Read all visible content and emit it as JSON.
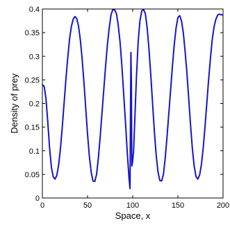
{
  "chart_data": {
    "type": "line",
    "title": "",
    "xlabel": "Space, x",
    "ylabel": "Density of prey",
    "xlim": [
      0,
      200
    ],
    "ylim": [
      0,
      0.4
    ],
    "x_ticks": [
      0,
      50,
      100,
      150,
      200
    ],
    "y_ticks": [
      0,
      0.05,
      0.1,
      0.15,
      0.2,
      0.25,
      0.3,
      0.35,
      0.4
    ],
    "x_tick_labels": [
      "0",
      "50",
      "100",
      "150",
      "200"
    ],
    "y_tick_labels": [
      "0",
      "0.05",
      "0.1",
      "0.15",
      "0.2",
      "0.25",
      "0.3",
      "0.35",
      "0.4"
    ],
    "grid": false,
    "line_color": "#1515c8",
    "series": [
      {
        "x": [
          0,
          2,
          4,
          6,
          8,
          10,
          12,
          14,
          16,
          18,
          20,
          22,
          24,
          26,
          28,
          30,
          32,
          34,
          36,
          38,
          40,
          42,
          44,
          46,
          48,
          50,
          52,
          54,
          56,
          58,
          60,
          62,
          64,
          66,
          68,
          70,
          72,
          74,
          76,
          78,
          80,
          82,
          84,
          86,
          88,
          90,
          92,
          94,
          96,
          97,
          98,
          98.5,
          99,
          99.5,
          100,
          101,
          102,
          104,
          106,
          108,
          110,
          112,
          114,
          116,
          118,
          120,
          122,
          124,
          126,
          128,
          130,
          132,
          134,
          136,
          138,
          140,
          142,
          144,
          146,
          148,
          150,
          152,
          154,
          156,
          158,
          160,
          162,
          164,
          166,
          168,
          170,
          172,
          174,
          176,
          178,
          180,
          182,
          184,
          186,
          188,
          190,
          192,
          194,
          196,
          198,
          200
        ],
        "y": [
          0.24,
          0.236,
          0.21,
          0.16,
          0.105,
          0.065,
          0.045,
          0.04,
          0.048,
          0.07,
          0.105,
          0.15,
          0.2,
          0.25,
          0.295,
          0.335,
          0.362,
          0.378,
          0.384,
          0.38,
          0.364,
          0.335,
          0.295,
          0.245,
          0.19,
          0.135,
          0.088,
          0.055,
          0.036,
          0.035,
          0.05,
          0.085,
          0.13,
          0.18,
          0.23,
          0.28,
          0.325,
          0.36,
          0.388,
          0.399,
          0.398,
          0.39,
          0.365,
          0.33,
          0.28,
          0.22,
          0.16,
          0.095,
          0.04,
          0.02,
          0.308,
          0.25,
          0.068,
          0.072,
          0.08,
          0.1,
          0.15,
          0.25,
          0.33,
          0.375,
          0.396,
          0.399,
          0.39,
          0.36,
          0.315,
          0.26,
          0.2,
          0.14,
          0.09,
          0.055,
          0.037,
          0.036,
          0.05,
          0.085,
          0.13,
          0.18,
          0.23,
          0.28,
          0.325,
          0.36,
          0.382,
          0.386,
          0.375,
          0.35,
          0.31,
          0.265,
          0.21,
          0.155,
          0.105,
          0.068,
          0.046,
          0.04,
          0.048,
          0.07,
          0.105,
          0.15,
          0.2,
          0.25,
          0.295,
          0.335,
          0.362,
          0.378,
          0.387,
          0.389,
          0.388,
          0.387
        ]
      }
    ]
  }
}
